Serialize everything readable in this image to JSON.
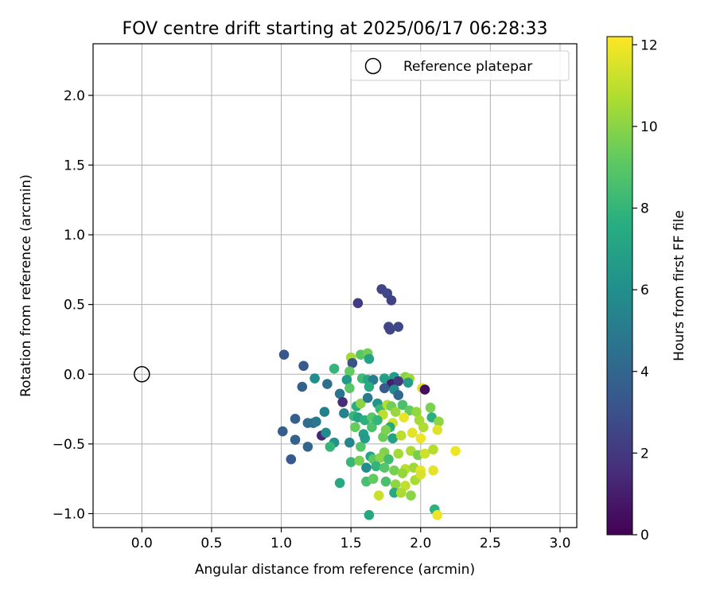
{
  "chart_data": {
    "type": "scatter",
    "title": "FOV centre drift starting at 2025/06/17 06:28:33",
    "xlabel": "Angular distance from reference (arcmin)",
    "ylabel": "Rotation from reference (arcmin)",
    "xlim": [
      -0.35,
      3.12
    ],
    "ylim": [
      -1.1,
      2.37
    ],
    "xticks": [
      "0.0",
      "0.5",
      "1.0",
      "1.5",
      "2.0",
      "2.5",
      "3.0"
    ],
    "yticks": [
      "−1.0",
      "−0.5",
      "0.0",
      "0.5",
      "1.0",
      "1.5",
      "2.0"
    ],
    "grid": true,
    "legend": {
      "placement": "top-right",
      "entries": [
        "Reference platepar"
      ]
    },
    "reference_point": {
      "x": 0.0,
      "y": 0.0
    },
    "colorbar": {
      "label": "Hours from first FF file",
      "range": [
        0,
        12.2
      ],
      "ticks": [
        "0",
        "2",
        "4",
        "6",
        "8",
        "10",
        "12"
      ],
      "colormap": "viridis"
    },
    "points": [
      [
        1.72,
        0.61,
        2.5
      ],
      [
        1.76,
        0.58,
        2.6
      ],
      [
        1.79,
        0.53,
        2.4
      ],
      [
        1.55,
        0.51,
        2.1
      ],
      [
        1.77,
        0.34,
        2.7
      ],
      [
        1.84,
        0.34,
        2.6
      ],
      [
        1.78,
        0.32,
        2.5
      ],
      [
        1.02,
        0.14,
        3.3
      ],
      [
        1.16,
        0.06,
        3.5
      ],
      [
        1.5,
        0.12,
        10.5
      ],
      [
        1.57,
        0.14,
        9.0
      ],
      [
        1.62,
        0.15,
        9.5
      ],
      [
        1.63,
        0.11,
        7.0
      ],
      [
        1.51,
        0.08,
        3.0
      ],
      [
        1.38,
        0.04,
        8.0
      ],
      [
        1.49,
        0.02,
        9.2
      ],
      [
        1.47,
        -0.04,
        6.5
      ],
      [
        1.58,
        -0.03,
        8.3
      ],
      [
        1.62,
        -0.04,
        7.2
      ],
      [
        1.66,
        -0.04,
        5.0
      ],
      [
        1.74,
        -0.03,
        6.9
      ],
      [
        1.81,
        -0.02,
        6.6
      ],
      [
        1.89,
        -0.02,
        9.9
      ],
      [
        1.92,
        -0.03,
        10.4
      ],
      [
        1.24,
        -0.03,
        6.0
      ],
      [
        1.33,
        -0.07,
        4.4
      ],
      [
        1.15,
        -0.09,
        3.8
      ],
      [
        1.79,
        -0.07,
        1.0
      ],
      [
        1.84,
        -0.05,
        2.0
      ],
      [
        1.91,
        -0.06,
        6.7
      ],
      [
        2.01,
        -0.1,
        11.6
      ],
      [
        2.03,
        -0.11,
        0.4
      ],
      [
        1.49,
        -0.1,
        9.0
      ],
      [
        1.63,
        -0.09,
        7.5
      ],
      [
        1.74,
        -0.1,
        3.5
      ],
      [
        1.81,
        -0.11,
        5.8
      ],
      [
        1.84,
        -0.15,
        4.1
      ],
      [
        1.42,
        -0.14,
        4.6
      ],
      [
        1.44,
        -0.2,
        1.5
      ],
      [
        1.31,
        -0.27,
        5.2
      ],
      [
        1.45,
        -0.28,
        5.4
      ],
      [
        1.54,
        -0.23,
        7.6
      ],
      [
        1.57,
        -0.21,
        10.0
      ],
      [
        1.62,
        -0.17,
        4.9
      ],
      [
        1.69,
        -0.21,
        6.3
      ],
      [
        1.71,
        -0.25,
        8.2
      ],
      [
        1.76,
        -0.22,
        10.8
      ],
      [
        1.79,
        -0.23,
        9.5
      ],
      [
        1.87,
        -0.22,
        8.6
      ],
      [
        1.92,
        -0.26,
        9.2
      ],
      [
        1.97,
        -0.27,
        10.2
      ],
      [
        2.07,
        -0.24,
        9.7
      ],
      [
        1.1,
        -0.32,
        3.7
      ],
      [
        1.23,
        -0.35,
        4.2
      ],
      [
        1.19,
        -0.35,
        4.4
      ],
      [
        1.25,
        -0.34,
        4.8
      ],
      [
        1.52,
        -0.3,
        8.1
      ],
      [
        1.55,
        -0.31,
        7.0
      ],
      [
        1.6,
        -0.33,
        7.7
      ],
      [
        1.65,
        -0.31,
        9.0
      ],
      [
        1.73,
        -0.29,
        11.0
      ],
      [
        1.8,
        -0.35,
        11.3
      ],
      [
        1.88,
        -0.31,
        11.8
      ],
      [
        1.99,
        -0.33,
        10.5
      ],
      [
        2.08,
        -0.31,
        7.7
      ],
      [
        2.13,
        -0.34,
        10.1
      ],
      [
        1.01,
        -0.41,
        3.6
      ],
      [
        1.1,
        -0.47,
        3.8
      ],
      [
        1.19,
        -0.52,
        4.0
      ],
      [
        1.07,
        -0.61,
        3.4
      ],
      [
        1.29,
        -0.44,
        1.3
      ],
      [
        1.32,
        -0.42,
        5.8
      ],
      [
        1.38,
        -0.49,
        6.2
      ],
      [
        1.49,
        -0.49,
        5.5
      ],
      [
        1.53,
        -0.38,
        9.3
      ],
      [
        1.59,
        -0.43,
        6.9
      ],
      [
        1.65,
        -0.38,
        8.7
      ],
      [
        1.73,
        -0.45,
        9.4
      ],
      [
        1.8,
        -0.46,
        7.0
      ],
      [
        1.86,
        -0.44,
        10.9
      ],
      [
        1.94,
        -0.42,
        11.7
      ],
      [
        2.0,
        -0.46,
        11.9
      ],
      [
        2.02,
        -0.38,
        10.7
      ],
      [
        2.12,
        -0.4,
        11.6
      ],
      [
        1.35,
        -0.52,
        8.0
      ],
      [
        1.57,
        -0.52,
        8.8
      ],
      [
        1.64,
        -0.59,
        7.1
      ],
      [
        1.74,
        -0.56,
        9.8
      ],
      [
        1.84,
        -0.57,
        10.5
      ],
      [
        1.93,
        -0.55,
        10.6
      ],
      [
        1.98,
        -0.58,
        9.6
      ],
      [
        2.03,
        -0.57,
        11.3
      ],
      [
        2.09,
        -0.54,
        10.8
      ],
      [
        2.25,
        -0.55,
        11.9
      ],
      [
        1.5,
        -0.63,
        8.1
      ],
      [
        1.56,
        -0.62,
        9.7
      ],
      [
        1.66,
        -0.61,
        9.1
      ],
      [
        1.71,
        -0.6,
        10.0
      ],
      [
        1.77,
        -0.61,
        8.4
      ],
      [
        1.89,
        -0.68,
        10.9
      ],
      [
        1.95,
        -0.67,
        10.4
      ],
      [
        2.0,
        -0.69,
        11.8
      ],
      [
        2.09,
        -0.69,
        11.7
      ],
      [
        1.61,
        -0.67,
        5.9
      ],
      [
        1.68,
        -0.66,
        7.9
      ],
      [
        1.74,
        -0.67,
        8.9
      ],
      [
        1.81,
        -0.69,
        9.6
      ],
      [
        1.96,
        -0.76,
        10.6
      ],
      [
        1.42,
        -0.78,
        7.3
      ],
      [
        1.61,
        -0.77,
        8.5
      ],
      [
        1.66,
        -0.75,
        9.2
      ],
      [
        1.75,
        -0.77,
        8.6
      ],
      [
        1.82,
        -0.79,
        10.1
      ],
      [
        1.89,
        -0.8,
        11.1
      ],
      [
        1.81,
        -0.85,
        7.3
      ],
      [
        1.86,
        -0.85,
        10.6
      ],
      [
        1.93,
        -0.87,
        10.0
      ],
      [
        1.7,
        -0.87,
        11.2
      ],
      [
        1.63,
        -1.01,
        7.2
      ],
      [
        2.1,
        -0.97,
        7.8
      ],
      [
        2.12,
        -1.01,
        11.9
      ],
      [
        1.87,
        -0.71,
        10.2
      ],
      [
        2.0,
        -0.72,
        11.5
      ],
      [
        1.78,
        -0.38,
        7.4
      ],
      [
        1.69,
        -0.33,
        8.0
      ],
      [
        1.75,
        -0.4,
        9.7
      ],
      [
        1.6,
        -0.46,
        6.6
      ],
      [
        1.82,
        -0.27,
        10.3
      ]
    ]
  }
}
